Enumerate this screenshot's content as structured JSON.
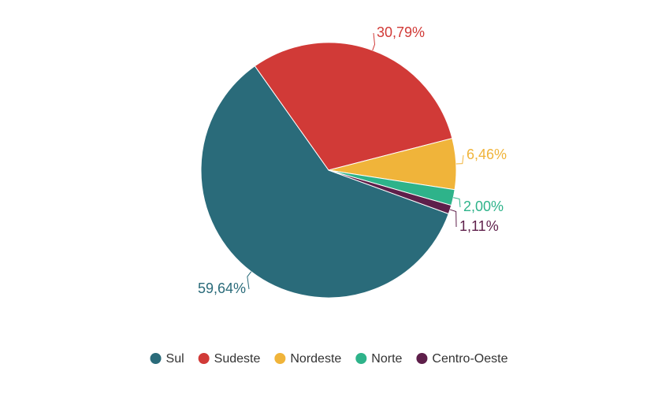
{
  "chart_data": {
    "type": "pie",
    "categories": [
      "Sul",
      "Sudeste",
      "Nordeste",
      "Norte",
      "Centro-Oeste"
    ],
    "values": [
      59.64,
      30.79,
      6.46,
      2.0,
      1.11
    ],
    "value_labels": [
      "59,64%",
      "30,79%",
      "6,46%",
      "2,00%",
      "1,11%"
    ],
    "colors": [
      "#2a6b7a",
      "#d13a37",
      "#f0b43a",
      "#2eb38a",
      "#5e1f4a"
    ],
    "legend": "bottom"
  }
}
